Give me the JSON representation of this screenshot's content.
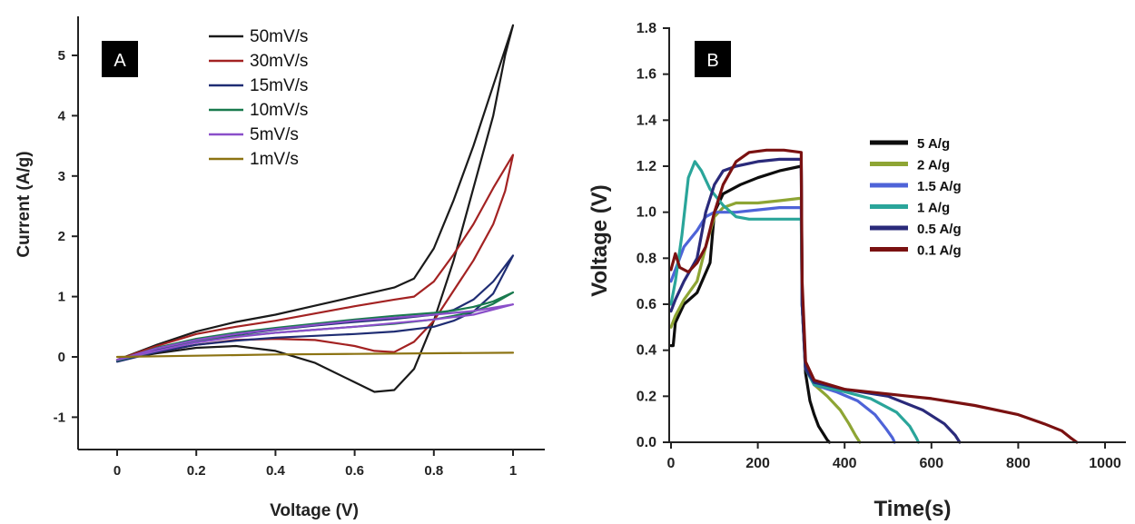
{
  "chart_data": [
    {
      "type": "line",
      "panel_label": "A",
      "xlabel": "Voltage (V)",
      "ylabel": "Current (A/g)",
      "xlim": [
        -0.1,
        1.1
      ],
      "ylim": [
        -1.5,
        5.6
      ],
      "xticks": [
        0,
        0.2,
        0.4,
        0.6,
        0.8,
        1
      ],
      "xtick_labels": [
        "0",
        "0.2",
        "0.4",
        "0.6",
        "0.8",
        "1"
      ],
      "yticks": [
        -1,
        0,
        1,
        2,
        3,
        4,
        5
      ],
      "ytick_labels": [
        "-1",
        "0",
        "1",
        "2",
        "3",
        "4",
        "5"
      ],
      "legend_position": "top-center",
      "series": [
        {
          "name": "50mV/s",
          "color": "#1a1a1a",
          "x": [
            0,
            0.1,
            0.2,
            0.3,
            0.4,
            0.5,
            0.6,
            0.7,
            0.75,
            0.8,
            0.85,
            0.9,
            0.95,
            1.0,
            0.98,
            0.95,
            0.9,
            0.85,
            0.8,
            0.75,
            0.7,
            0.65,
            0.6,
            0.5,
            0.4,
            0.3,
            0.2,
            0.1,
            0
          ],
          "y": [
            -0.05,
            0.2,
            0.42,
            0.58,
            0.7,
            0.85,
            1.0,
            1.15,
            1.3,
            1.8,
            2.6,
            3.5,
            4.5,
            5.5,
            5.0,
            4.0,
            2.8,
            1.6,
            0.6,
            -0.2,
            -0.55,
            -0.58,
            -0.42,
            -0.1,
            0.1,
            0.18,
            0.15,
            0.06,
            -0.05
          ]
        },
        {
          "name": "30mV/s",
          "color": "#a32222",
          "x": [
            0,
            0.1,
            0.2,
            0.3,
            0.4,
            0.5,
            0.6,
            0.7,
            0.75,
            0.8,
            0.85,
            0.9,
            0.95,
            1.0,
            0.98,
            0.95,
            0.9,
            0.85,
            0.8,
            0.75,
            0.7,
            0.65,
            0.6,
            0.5,
            0.4,
            0.3,
            0.2,
            0.1,
            0
          ],
          "y": [
            -0.05,
            0.18,
            0.38,
            0.5,
            0.6,
            0.72,
            0.84,
            0.95,
            1.0,
            1.25,
            1.7,
            2.2,
            2.8,
            3.35,
            2.75,
            2.2,
            1.6,
            1.1,
            0.6,
            0.25,
            0.08,
            0.1,
            0.18,
            0.28,
            0.3,
            0.28,
            0.2,
            0.08,
            -0.05
          ]
        },
        {
          "name": "15mV/s",
          "color": "#1f2d73",
          "x": [
            0,
            0.1,
            0.2,
            0.3,
            0.4,
            0.5,
            0.6,
            0.7,
            0.8,
            0.85,
            0.9,
            0.95,
            1.0,
            0.95,
            0.9,
            0.85,
            0.8,
            0.7,
            0.6,
            0.5,
            0.4,
            0.3,
            0.2,
            0.1,
            0
          ],
          "y": [
            -0.08,
            0.12,
            0.27,
            0.37,
            0.45,
            0.52,
            0.58,
            0.63,
            0.7,
            0.78,
            0.95,
            1.25,
            1.68,
            1.05,
            0.75,
            0.6,
            0.5,
            0.42,
            0.38,
            0.35,
            0.32,
            0.27,
            0.2,
            0.08,
            -0.08
          ]
        },
        {
          "name": "10mV/s",
          "color": "#197a4e",
          "x": [
            0,
            0.1,
            0.2,
            0.3,
            0.4,
            0.5,
            0.6,
            0.7,
            0.8,
            0.85,
            0.9,
            0.95,
            1.0,
            0.95,
            0.9,
            0.85,
            0.8,
            0.7,
            0.6,
            0.5,
            0.4,
            0.3,
            0.2,
            0.1,
            0
          ],
          "y": [
            -0.06,
            0.15,
            0.3,
            0.4,
            0.48,
            0.55,
            0.62,
            0.68,
            0.73,
            0.77,
            0.83,
            0.92,
            1.07,
            0.88,
            0.75,
            0.68,
            0.62,
            0.55,
            0.5,
            0.45,
            0.4,
            0.34,
            0.25,
            0.1,
            -0.06
          ]
        },
        {
          "name": "5mV/s",
          "color": "#8a4fc9",
          "x": [
            0,
            0.1,
            0.2,
            0.3,
            0.4,
            0.5,
            0.6,
            0.7,
            0.8,
            0.9,
            1.0,
            0.9,
            0.8,
            0.7,
            0.6,
            0.5,
            0.4,
            0.3,
            0.2,
            0.1,
            0
          ],
          "y": [
            -0.05,
            0.14,
            0.28,
            0.38,
            0.46,
            0.53,
            0.6,
            0.65,
            0.7,
            0.76,
            0.87,
            0.7,
            0.62,
            0.56,
            0.5,
            0.45,
            0.4,
            0.33,
            0.24,
            0.1,
            -0.05
          ]
        },
        {
          "name": "1mV/s",
          "color": "#8c7313",
          "x": [
            0,
            0.2,
            0.4,
            0.6,
            0.8,
            1.0
          ],
          "y": [
            0.0,
            0.02,
            0.04,
            0.05,
            0.06,
            0.07
          ]
        }
      ]
    },
    {
      "type": "line",
      "panel_label": "B",
      "xlabel": "Time(s)",
      "ylabel": "Voltage (V)",
      "xlim": [
        0,
        1050
      ],
      "ylim": [
        0,
        1.8
      ],
      "xticks": [
        0,
        200,
        400,
        600,
        800,
        1000
      ],
      "xtick_labels": [
        "0",
        "200",
        "400",
        "600",
        "800",
        "1000"
      ],
      "yticks": [
        0,
        0.2,
        0.4,
        0.6,
        0.8,
        1.0,
        1.2,
        1.4,
        1.6,
        1.8
      ],
      "ytick_labels": [
        "0.0",
        "0.2",
        "0.4",
        "0.6",
        "0.8",
        "1.0",
        "1.2",
        "1.4",
        "1.6",
        "1.8"
      ],
      "legend_position": "center-right",
      "series": [
        {
          "name": "5 A/g",
          "color": "#0d0d0d",
          "x": [
            0,
            5,
            10,
            30,
            60,
            90,
            100,
            120,
            160,
            200,
            250,
            300,
            302,
            310,
            320,
            330,
            340,
            350,
            360,
            365
          ],
          "y": [
            0.42,
            0.42,
            0.52,
            0.6,
            0.65,
            0.78,
            1.0,
            1.08,
            1.12,
            1.15,
            1.18,
            1.2,
            0.6,
            0.3,
            0.18,
            0.12,
            0.07,
            0.04,
            0.01,
            0.0
          ]
        },
        {
          "name": "2 A/g",
          "color": "#8ea534",
          "x": [
            0,
            10,
            30,
            60,
            80,
            100,
            120,
            150,
            200,
            250,
            295,
            300,
            302,
            310,
            330,
            360,
            390,
            410,
            425,
            435
          ],
          "y": [
            0.5,
            0.55,
            0.62,
            0.7,
            0.85,
            0.98,
            1.02,
            1.04,
            1.04,
            1.05,
            1.06,
            1.06,
            0.6,
            0.32,
            0.25,
            0.2,
            0.14,
            0.08,
            0.03,
            0.0
          ]
        },
        {
          "name": "1.5 A/g",
          "color": "#4e63d8",
          "x": [
            0,
            10,
            30,
            60,
            80,
            100,
            150,
            200,
            250,
            300,
            302,
            310,
            330,
            380,
            430,
            470,
            495,
            510,
            515
          ],
          "y": [
            0.7,
            0.75,
            0.85,
            0.92,
            0.98,
            1.0,
            1.0,
            1.01,
            1.02,
            1.02,
            0.6,
            0.32,
            0.25,
            0.22,
            0.18,
            0.12,
            0.06,
            0.02,
            0.0
          ]
        },
        {
          "name": "1 A/g",
          "color": "#2aa59a",
          "x": [
            0,
            10,
            25,
            40,
            55,
            70,
            90,
            120,
            150,
            180,
            240,
            300,
            302,
            310,
            330,
            400,
            460,
            520,
            550,
            565,
            570
          ],
          "y": [
            0.6,
            0.7,
            0.9,
            1.15,
            1.22,
            1.18,
            1.1,
            1.03,
            0.98,
            0.97,
            0.97,
            0.97,
            0.6,
            0.32,
            0.25,
            0.22,
            0.19,
            0.13,
            0.07,
            0.02,
            0.0
          ]
        },
        {
          "name": "0.5 A/g",
          "color": "#2a2a7a",
          "x": [
            0,
            10,
            30,
            60,
            80,
            100,
            120,
            150,
            200,
            250,
            300,
            302,
            310,
            330,
            400,
            500,
            580,
            630,
            655,
            665
          ],
          "y": [
            0.57,
            0.62,
            0.7,
            0.8,
            1.0,
            1.12,
            1.18,
            1.2,
            1.22,
            1.23,
            1.23,
            0.6,
            0.32,
            0.26,
            0.23,
            0.2,
            0.14,
            0.08,
            0.03,
            0.0
          ]
        },
        {
          "name": "0.1 A/g",
          "color": "#7a1111",
          "x": [
            0,
            10,
            20,
            40,
            60,
            80,
            100,
            120,
            150,
            180,
            220,
            260,
            300,
            302,
            310,
            330,
            400,
            500,
            600,
            700,
            800,
            860,
            900,
            920,
            935
          ],
          "y": [
            0.75,
            0.82,
            0.76,
            0.74,
            0.78,
            0.85,
            1.0,
            1.12,
            1.22,
            1.26,
            1.27,
            1.27,
            1.26,
            0.7,
            0.35,
            0.27,
            0.23,
            0.21,
            0.19,
            0.16,
            0.12,
            0.08,
            0.05,
            0.02,
            0.0
          ]
        }
      ]
    }
  ]
}
